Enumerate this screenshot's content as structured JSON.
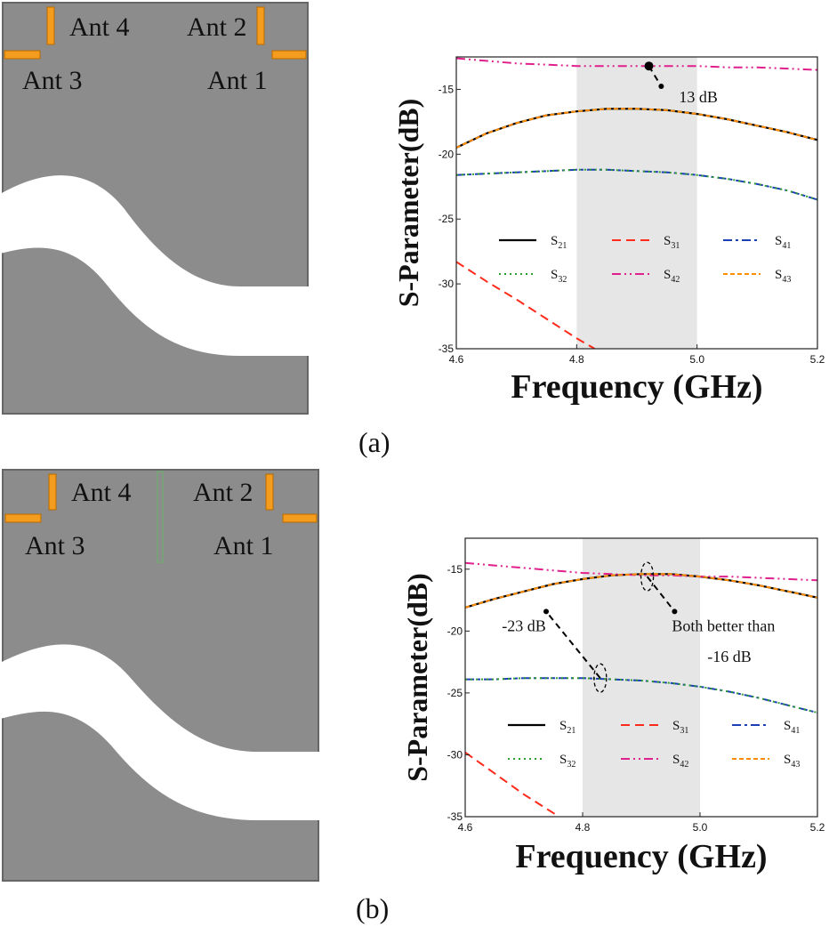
{
  "colors": {
    "substrate": "#8c8c8c",
    "substrate_edge": "#666666",
    "antenna": "#f39c1d",
    "antenna_edge": "#b86a00",
    "band_shade": "#e6e6e6",
    "decoupler": "#7aa07a"
  },
  "layouts": [
    {
      "panel": "a",
      "antenna_labels": [
        "Ant 4",
        "Ant 2",
        "Ant 3",
        "Ant 1"
      ],
      "has_decoupler": false
    },
    {
      "panel": "b",
      "antenna_labels": [
        "Ant 4",
        "Ant 2",
        "Ant 3",
        "Ant 1"
      ],
      "has_decoupler": true
    }
  ],
  "captions": [
    "(a)",
    "(b)"
  ],
  "chart_data": [
    {
      "type": "line",
      "panel": "a",
      "xlabel": "Frequency (GHz)",
      "ylabel": "S-Parameter(dB)",
      "xlim": [
        4.6,
        5.2
      ],
      "ylim": [
        -35,
        -12.5
      ],
      "xticks": [
        "4.6",
        "4.8",
        "5.0",
        "5.2"
      ],
      "yticks": [
        "-15",
        "-20",
        "-25",
        "-30",
        "-35"
      ],
      "ytick_values": [
        -15,
        -20,
        -25,
        -30,
        -35
      ],
      "xtick_values": [
        4.6,
        4.8,
        5.0,
        5.2
      ],
      "shaded_band": [
        4.8,
        5.0
      ],
      "annotations": [
        {
          "text": "13 dB",
          "point": [
            4.92,
            -13.2
          ],
          "text_at": [
            4.97,
            -16.0
          ]
        }
      ],
      "series": [
        {
          "name": "S21",
          "color": "#000000",
          "dash": "",
          "width": 2.2,
          "x": [
            4.6,
            4.65,
            4.7,
            4.75,
            4.8,
            4.85,
            4.9,
            4.95,
            5.0,
            5.05,
            5.1,
            5.15,
            5.2
          ],
          "y": [
            -19.5,
            -18.4,
            -17.6,
            -17.0,
            -16.7,
            -16.5,
            -16.5,
            -16.6,
            -16.9,
            -17.3,
            -17.8,
            -18.3,
            -18.9
          ]
        },
        {
          "name": "S31",
          "color": "#ff2a1a",
          "dash": "10,6",
          "width": 2,
          "x": [
            4.6,
            4.65,
            4.7,
            4.75,
            4.8,
            4.83
          ],
          "y": [
            -28.3,
            -29.8,
            -31.2,
            -32.7,
            -34.2,
            -35.0
          ]
        },
        {
          "name": "S41",
          "color": "#1d3fb5",
          "dash": "10,4,3,4",
          "width": 2,
          "x": [
            4.6,
            4.65,
            4.7,
            4.75,
            4.8,
            4.85,
            4.9,
            4.95,
            5.0,
            5.05,
            5.1,
            5.15,
            5.2
          ],
          "y": [
            -21.6,
            -21.5,
            -21.4,
            -21.3,
            -21.2,
            -21.2,
            -21.3,
            -21.4,
            -21.6,
            -21.9,
            -22.3,
            -22.8,
            -23.5
          ]
        },
        {
          "name": "S32",
          "color": "#2e9e2e",
          "dash": "2,4",
          "width": 2,
          "x": [
            4.6,
            4.65,
            4.7,
            4.75,
            4.8,
            4.85,
            4.9,
            4.95,
            5.0,
            5.05,
            5.1,
            5.15,
            5.2
          ],
          "y": [
            -21.6,
            -21.5,
            -21.4,
            -21.3,
            -21.2,
            -21.2,
            -21.3,
            -21.4,
            -21.6,
            -21.9,
            -22.3,
            -22.8,
            -23.5
          ]
        },
        {
          "name": "S42",
          "color": "#e0208c",
          "dash": "10,4,2,4,2,4",
          "width": 2,
          "x": [
            4.6,
            4.65,
            4.7,
            4.75,
            4.8,
            4.85,
            4.9,
            4.95,
            5.0,
            5.05,
            5.1,
            5.15,
            5.2
          ],
          "y": [
            -12.6,
            -12.8,
            -13.0,
            -13.1,
            -13.2,
            -13.2,
            -13.2,
            -13.2,
            -13.2,
            -13.3,
            -13.3,
            -13.4,
            -13.5
          ]
        },
        {
          "name": "S43",
          "color": "#ff8c00",
          "dash": "5,3",
          "width": 2,
          "x": [
            4.6,
            4.65,
            4.7,
            4.75,
            4.8,
            4.85,
            4.9,
            4.95,
            5.0,
            5.05,
            5.1,
            5.15,
            5.2
          ],
          "y": [
            -19.5,
            -18.4,
            -17.6,
            -17.0,
            -16.7,
            -16.5,
            -16.5,
            -16.6,
            -16.9,
            -17.3,
            -17.8,
            -18.3,
            -18.9
          ]
        }
      ]
    },
    {
      "type": "line",
      "panel": "b",
      "xlabel": "Frequency (GHz)",
      "ylabel": "S-Parameter(dB)",
      "xlim": [
        4.6,
        5.2
      ],
      "ylim": [
        -35,
        -12.5
      ],
      "xticks": [
        "4.6",
        "4.8",
        "5.0",
        "5.2"
      ],
      "yticks": [
        "-15",
        "-20",
        "-25",
        "-30",
        "-35"
      ],
      "ytick_values": [
        -15,
        -20,
        -25,
        -30,
        -35
      ],
      "xtick_values": [
        4.6,
        4.8,
        5.0,
        5.2
      ],
      "shaded_band": [
        4.8,
        5.0
      ],
      "annotations": [
        {
          "text": "-23 dB",
          "point": [
            4.83,
            -23.8
          ],
          "text_at": [
            4.7,
            -20.0
          ]
        },
        {
          "text": "Both better than",
          "point": [
            4.91,
            -15.6
          ],
          "text_at": [
            5.04,
            -20.0
          ]
        },
        {
          "text": "-16 dB",
          "point": null,
          "text_at": [
            5.05,
            -22.5
          ]
        }
      ],
      "series": [
        {
          "name": "S21",
          "color": "#000000",
          "dash": "",
          "width": 2.2,
          "x": [
            4.6,
            4.65,
            4.7,
            4.75,
            4.8,
            4.85,
            4.9,
            4.95,
            5.0,
            5.05,
            5.1,
            5.15,
            5.2
          ],
          "y": [
            -18.1,
            -17.4,
            -16.8,
            -16.2,
            -15.8,
            -15.5,
            -15.4,
            -15.4,
            -15.6,
            -15.9,
            -16.3,
            -16.8,
            -17.3
          ]
        },
        {
          "name": "S31",
          "color": "#ff2a1a",
          "dash": "10,6",
          "width": 2,
          "x": [
            4.6,
            4.65,
            4.7,
            4.75,
            4.76
          ],
          "y": [
            -29.8,
            -31.5,
            -33.2,
            -34.7,
            -35.0
          ]
        },
        {
          "name": "S41",
          "color": "#1d3fb5",
          "dash": "10,4,3,4",
          "width": 2,
          "x": [
            4.6,
            4.65,
            4.7,
            4.75,
            4.8,
            4.85,
            4.9,
            4.95,
            5.0,
            5.05,
            5.1,
            5.15,
            5.2
          ],
          "y": [
            -23.9,
            -23.9,
            -23.8,
            -23.8,
            -23.8,
            -23.9,
            -24.0,
            -24.2,
            -24.5,
            -24.9,
            -25.4,
            -26.0,
            -26.6
          ]
        },
        {
          "name": "S32",
          "color": "#2e9e2e",
          "dash": "2,4",
          "width": 2,
          "x": [
            4.6,
            4.65,
            4.7,
            4.75,
            4.8,
            4.85,
            4.9,
            4.95,
            5.0,
            5.05,
            5.1,
            5.15,
            5.2
          ],
          "y": [
            -23.9,
            -23.9,
            -23.8,
            -23.8,
            -23.8,
            -23.9,
            -24.0,
            -24.2,
            -24.5,
            -24.9,
            -25.4,
            -26.0,
            -26.6
          ]
        },
        {
          "name": "S42",
          "color": "#e0208c",
          "dash": "10,4,2,4,2,4",
          "width": 2,
          "x": [
            4.6,
            4.65,
            4.7,
            4.75,
            4.8,
            4.85,
            4.9,
            4.95,
            5.0,
            5.05,
            5.1,
            5.15,
            5.2
          ],
          "y": [
            -14.5,
            -14.7,
            -14.9,
            -15.1,
            -15.3,
            -15.4,
            -15.5,
            -15.5,
            -15.6,
            -15.6,
            -15.7,
            -15.8,
            -15.9
          ]
        },
        {
          "name": "S43",
          "color": "#ff8c00",
          "dash": "5,3",
          "width": 2,
          "x": [
            4.6,
            4.65,
            4.7,
            4.75,
            4.8,
            4.85,
            4.9,
            4.95,
            5.0,
            5.05,
            5.1,
            5.15,
            5.2
          ],
          "y": [
            -18.1,
            -17.4,
            -16.8,
            -16.2,
            -15.8,
            -15.5,
            -15.4,
            -15.4,
            -15.6,
            -15.9,
            -16.3,
            -16.8,
            -17.3
          ]
        }
      ]
    }
  ]
}
